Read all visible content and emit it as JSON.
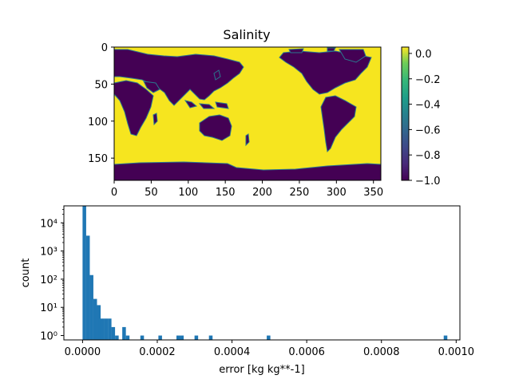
{
  "colors": {
    "ocean": "#f6e51f",
    "land": "#440154",
    "coast": "#2a788e",
    "bar": "#1f77b4"
  },
  "chart_data": [
    {
      "type": "heatmap",
      "title": "Salinity",
      "xlabel": "",
      "ylabel": "",
      "xlim": [
        0,
        360
      ],
      "ylim": [
        180,
        0
      ],
      "x_ticks": [
        0,
        50,
        100,
        150,
        200,
        250,
        300,
        350
      ],
      "y_ticks": [
        0,
        50,
        100,
        150
      ],
      "x_tick_labels": [
        "0",
        "50",
        "100",
        "150",
        "200",
        "250",
        "300",
        "350"
      ],
      "y_tick_labels": [
        "0",
        "50",
        "100",
        "150"
      ],
      "colorbar": {
        "colormap": "viridis",
        "vmin": -1.0,
        "vmax": 0.05,
        "ticks": [
          0.0,
          -0.2,
          -0.4,
          -0.6,
          -0.8,
          -1.0
        ],
        "tick_labels": [
          "0.0",
          "−0.2",
          "−0.4",
          "−0.6",
          "−0.8",
          "−1.0"
        ]
      },
      "values_description_ocean": 0.0,
      "values_description_land": -1.0
    },
    {
      "type": "bar",
      "title": "",
      "xlabel": "error [kg kg**-1]",
      "ylabel": "count",
      "yscale": "log",
      "xlim": [
        -5e-05,
        0.00101
      ],
      "ylim": [
        0.7,
        40000
      ],
      "x_ticks": [
        0.0,
        0.0002,
        0.0004,
        0.0006,
        0.0008,
        0.001
      ],
      "x_tick_labels": [
        "0.0000",
        "0.0002",
        "0.0004",
        "0.0006",
        "0.0008",
        "0.0010"
      ],
      "y_ticks": [
        1,
        10,
        100,
        1000,
        10000
      ],
      "y_tick_labels": [
        "10⁰",
        "10¹",
        "10²",
        "10³",
        "10⁴"
      ],
      "bin_width": 9.67e-06,
      "bins": [
        {
          "x": 0.0,
          "count": 40000
        },
        {
          "x": 9.7e-06,
          "count": 3500
        },
        {
          "x": 1.93e-05,
          "count": 140
        },
        {
          "x": 2.9e-05,
          "count": 20
        },
        {
          "x": 3.87e-05,
          "count": 12
        },
        {
          "x": 4.83e-05,
          "count": 4
        },
        {
          "x": 5.8e-05,
          "count": 4
        },
        {
          "x": 6.77e-05,
          "count": 4
        },
        {
          "x": 7.73e-05,
          "count": 2
        },
        {
          "x": 8.7e-05,
          "count": 1
        },
        {
          "x": 0.0001063,
          "count": 2
        },
        {
          "x": 0.000116,
          "count": 1
        },
        {
          "x": 0.0001547,
          "count": 1
        },
        {
          "x": 0.000203,
          "count": 1
        },
        {
          "x": 0.0002513,
          "count": 1
        },
        {
          "x": 0.000261,
          "count": 1
        },
        {
          "x": 0.0002997,
          "count": 1
        },
        {
          "x": 0.0003383,
          "count": 1
        },
        {
          "x": 0.000493,
          "count": 1
        },
        {
          "x": 0.0009667,
          "count": 1
        }
      ]
    }
  ]
}
